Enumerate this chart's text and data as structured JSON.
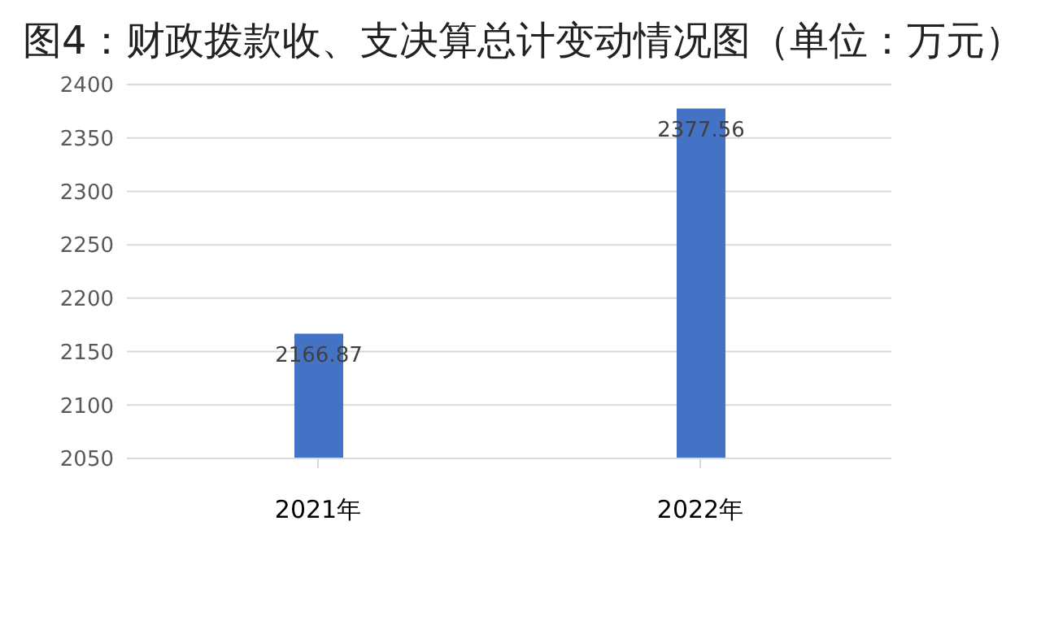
{
  "chart_data": {
    "type": "bar",
    "title": "图4：财政拨款收、支决算总计变动情况图（单位：万元）",
    "categories": [
      "2021年",
      "2022年"
    ],
    "values": [
      2166.87,
      2377.56
    ],
    "color": "#4472c4",
    "ylim": [
      2050,
      2400
    ],
    "yticks": [
      2050,
      2100,
      2150,
      2200,
      2250,
      2300,
      2350,
      2400
    ],
    "grid": "y",
    "data_labels": true
  }
}
